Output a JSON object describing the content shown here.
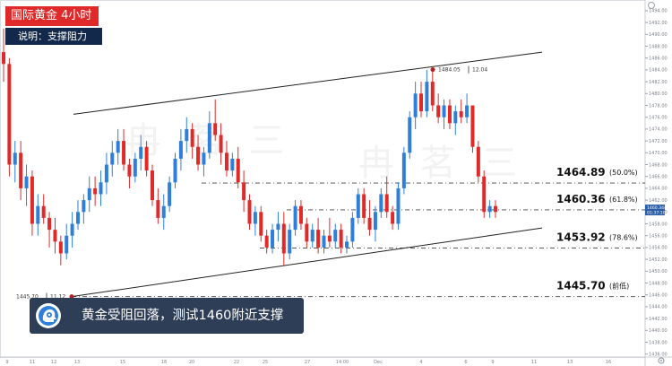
{
  "header": {
    "title": "国际黄金 4小时",
    "note": "说明：支撑阻力"
  },
  "headline": {
    "text": "黄金受阻回落，测试1460附近支撑"
  },
  "watermark": "冉 茗 三",
  "icons": {
    "headline": "technical-analysis-head-icon",
    "settings": "gear-icon",
    "top": "circle-icon"
  },
  "colors": {
    "up": "#2f7fd9",
    "down": "#e02a2a",
    "title_bg": "#e02a2a",
    "note_bg": "#13294b",
    "headline_bg": "#2f3e57",
    "level_line": "#444444",
    "price_tag_bg": "#2a5fa8"
  },
  "chart_data": {
    "type": "candlestick",
    "x_ticks": [
      "9",
      "11",
      "12",
      "13",
      "15",
      "18",
      "20",
      "22",
      "25",
      "27",
      "14:00",
      "Dec",
      "4",
      "6",
      "9",
      "11",
      "13",
      "16"
    ],
    "y_ticks": [
      "1494.00",
      "1492.00",
      "1490.00",
      "1488.00",
      "1486.00",
      "1484.00",
      "1482.00",
      "1480.00",
      "1478.00",
      "1476.00",
      "1474.00",
      "1472.00",
      "1470.00",
      "1468.00",
      "1466.00",
      "1464.00",
      "1462.00",
      "1460.00",
      "1458.00",
      "1456.00",
      "1454.00",
      "1452.00",
      "1450.00",
      "1448.00",
      "1446.00",
      "1444.00",
      "1442.00",
      "1440.00",
      "1438.00",
      "1436.00"
    ],
    "y_range": [
      1435.5,
      1495.5
    ],
    "levels": [
      {
        "price": 1464.89,
        "label": "1464.89",
        "note": "(50.0%)"
      },
      {
        "price": 1460.36,
        "label": "1460.36",
        "note": "(61.8%)"
      },
      {
        "price": 1453.92,
        "label": "1453.92",
        "note": "(78.6%)"
      },
      {
        "price": 1445.7,
        "label": "1445.70",
        "note": "(前低)"
      }
    ],
    "points": [
      {
        "label": "1484.05",
        "extra": "12.04",
        "price": 1484.05
      },
      {
        "label": "1445.70",
        "extra": "11.12",
        "price": 1445.7
      }
    ],
    "current_price": {
      "top": "1460.344",
      "bottom": "01:37:10",
      "price": 1460.34
    },
    "channel": {
      "upper": [
        1476.5,
        1487.0
      ],
      "lower": [
        1445.7,
        1457.3
      ]
    },
    "candles_ohlc": [
      [
        1487,
        1491,
        1482,
        1485
      ],
      [
        1485,
        1486,
        1466,
        1468
      ],
      [
        1468,
        1472,
        1465,
        1470
      ],
      [
        1470,
        1472,
        1462,
        1464
      ],
      [
        1464,
        1468,
        1461,
        1466
      ],
      [
        1466,
        1467,
        1456,
        1458
      ],
      [
        1458,
        1463,
        1456,
        1461
      ],
      [
        1461,
        1463,
        1458,
        1459
      ],
      [
        1459,
        1460,
        1454,
        1457
      ],
      [
        1457,
        1459,
        1453,
        1455
      ],
      [
        1455,
        1456,
        1451,
        1453
      ],
      [
        1453,
        1458,
        1452,
        1456
      ],
      [
        1456,
        1460,
        1454,
        1458
      ],
      [
        1458,
        1462,
        1457,
        1460
      ],
      [
        1460,
        1463,
        1458,
        1462
      ],
      [
        1462,
        1466,
        1460,
        1464
      ],
      [
        1464,
        1466,
        1461,
        1463
      ],
      [
        1463,
        1467,
        1461,
        1465
      ],
      [
        1465,
        1470,
        1463,
        1468
      ],
      [
        1468,
        1472,
        1466,
        1470
      ],
      [
        1470,
        1474,
        1468,
        1472
      ],
      [
        1472,
        1474,
        1467,
        1468
      ],
      [
        1468,
        1469,
        1464,
        1466
      ],
      [
        1466,
        1470,
        1465,
        1469
      ],
      [
        1469,
        1473,
        1467,
        1471
      ],
      [
        1471,
        1472,
        1466,
        1467
      ],
      [
        1467,
        1468,
        1461,
        1462
      ],
      [
        1462,
        1464,
        1458,
        1459
      ],
      [
        1459,
        1463,
        1457,
        1461
      ],
      [
        1461,
        1466,
        1460,
        1465
      ],
      [
        1465,
        1470,
        1464,
        1469
      ],
      [
        1469,
        1474,
        1467,
        1472
      ],
      [
        1472,
        1476,
        1470,
        1474
      ],
      [
        1474,
        1475,
        1469,
        1471
      ],
      [
        1471,
        1473,
        1467,
        1468
      ],
      [
        1468,
        1471,
        1466,
        1470
      ],
      [
        1470,
        1477,
        1469,
        1475
      ],
      [
        1475,
        1479,
        1472,
        1473
      ],
      [
        1473,
        1475,
        1468,
        1470
      ],
      [
        1470,
        1472,
        1466,
        1467
      ],
      [
        1467,
        1470,
        1466,
        1469
      ],
      [
        1469,
        1471,
        1464,
        1465
      ],
      [
        1465,
        1467,
        1460,
        1462
      ],
      [
        1462,
        1463,
        1457,
        1458
      ],
      [
        1458,
        1461,
        1456,
        1460
      ],
      [
        1460,
        1461,
        1455,
        1456
      ],
      [
        1456,
        1457,
        1453,
        1454
      ],
      [
        1454,
        1458,
        1453,
        1457
      ],
      [
        1457,
        1460,
        1455,
        1458
      ],
      [
        1458,
        1460,
        1451,
        1453
      ],
      [
        1453,
        1458,
        1452,
        1457
      ],
      [
        1457,
        1462,
        1456,
        1461
      ],
      [
        1461,
        1462,
        1457,
        1458
      ],
      [
        1458,
        1459,
        1454,
        1455
      ],
      [
        1455,
        1458,
        1454,
        1457
      ],
      [
        1457,
        1459,
        1453,
        1454
      ],
      [
        1454,
        1457,
        1453,
        1456
      ],
      [
        1456,
        1459,
        1454,
        1455
      ],
      [
        1455,
        1458,
        1454,
        1457
      ],
      [
        1457,
        1458,
        1453,
        1454
      ],
      [
        1454,
        1456,
        1453,
        1455
      ],
      [
        1455,
        1460,
        1454,
        1459
      ],
      [
        1459,
        1464,
        1458,
        1463
      ],
      [
        1463,
        1464,
        1458,
        1459
      ],
      [
        1459,
        1462,
        1456,
        1457
      ],
      [
        1457,
        1461,
        1455,
        1460
      ],
      [
        1460,
        1464,
        1459,
        1463
      ],
      [
        1463,
        1466,
        1459,
        1460
      ],
      [
        1460,
        1461,
        1457,
        1458
      ],
      [
        1458,
        1465,
        1457,
        1464
      ],
      [
        1464,
        1471,
        1463,
        1470
      ],
      [
        1470,
        1477,
        1469,
        1476
      ],
      [
        1476,
        1482,
        1474,
        1480
      ],
      [
        1480,
        1482,
        1476,
        1477
      ],
      [
        1477,
        1484,
        1476,
        1482
      ],
      [
        1482,
        1484,
        1477,
        1478
      ],
      [
        1478,
        1480,
        1475,
        1476
      ],
      [
        1476,
        1479,
        1474,
        1478
      ],
      [
        1478,
        1479,
        1474,
        1475
      ],
      [
        1475,
        1478,
        1473,
        1477
      ],
      [
        1477,
        1479,
        1475,
        1476
      ],
      [
        1476,
        1480,
        1475,
        1478
      ],
      [
        1478,
        1478,
        1470,
        1471
      ],
      [
        1471,
        1472,
        1465,
        1466
      ],
      [
        1466,
        1467,
        1459,
        1460
      ],
      [
        1460,
        1462,
        1459,
        1461
      ],
      [
        1461,
        1462,
        1459,
        1460
      ]
    ]
  }
}
